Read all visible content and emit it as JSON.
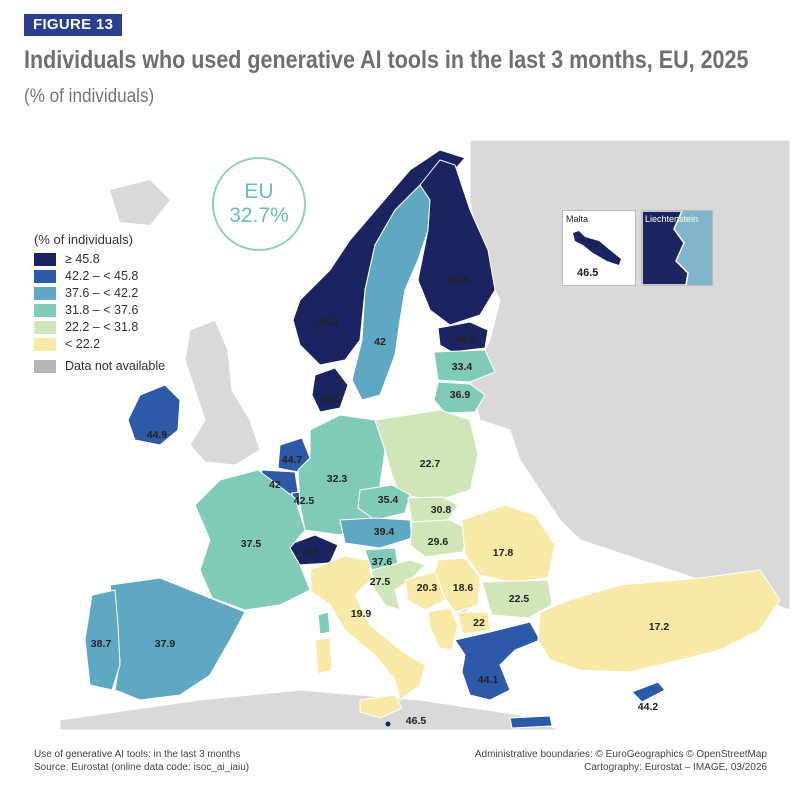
{
  "figure_label": "FIGURE 13",
  "title": "Individuals who used generative AI tools in the last 3 months, EU, 2025",
  "subtitle": "(% of individuals)",
  "eu_badge": {
    "label": "EU",
    "value": "32.7%"
  },
  "legend": {
    "title": "(% of individuals)",
    "items": [
      {
        "label": "≥ 45.8",
        "color": "#1a2460"
      },
      {
        "label": "42.2 – < 45.8",
        "color": "#2c5aa8"
      },
      {
        "label": "37.6 – < 42.2",
        "color": "#5fa8c3"
      },
      {
        "label": "31.8 – < 37.6",
        "color": "#7fcbb8"
      },
      {
        "label": "22.2 – < 31.8",
        "color": "#cfe7b8"
      },
      {
        "label": "< 22.2",
        "color": "#f8e9a6"
      }
    ],
    "na": {
      "label": "Data not available",
      "color": "#b5b5b5"
    }
  },
  "insets": {
    "malta": {
      "title": "Malta",
      "value": "46.5"
    },
    "liechtenstein": {
      "title": "Liechtenstein"
    }
  },
  "values": {
    "norway": "56.3",
    "sweden": "42",
    "finland": "46.3",
    "estonia": "46.6",
    "latvia": "33.4",
    "lithuania": "36.9",
    "denmark": "48.4",
    "ireland": "44.9",
    "netherlands": "44.7",
    "belgium": "42",
    "luxembourg": "42.5",
    "germany": "32.3",
    "poland": "22.7",
    "czechia": "35.4",
    "slovakia": "30.8",
    "austria": "39.4",
    "hungary": "29.6",
    "switzerland": "47",
    "slovenia": "37.6",
    "croatia": "27.5",
    "bosnia": "20.3",
    "serbia": "18.6",
    "romania": "17.8",
    "bulgaria": "22.5",
    "north_macedonia": "22",
    "france": "37.5",
    "portugal": "38.7",
    "spain": "37.9",
    "italy": "19.9",
    "greece": "44.1",
    "turkey": "17.2",
    "cyprus": "44.2",
    "malta_main": "46.5"
  },
  "footer": {
    "left_line1": "Use of generative AI tools: in the last 3 months",
    "left_line2": "Source: Eurostat (online data code: isoc_ai_iaiu)",
    "right_line1": "Administrative boundaries: © EuroGeographics © OpenStreetMap",
    "right_line2": "Cartography: Eurostat – IMAGE, 03/2026"
  }
}
